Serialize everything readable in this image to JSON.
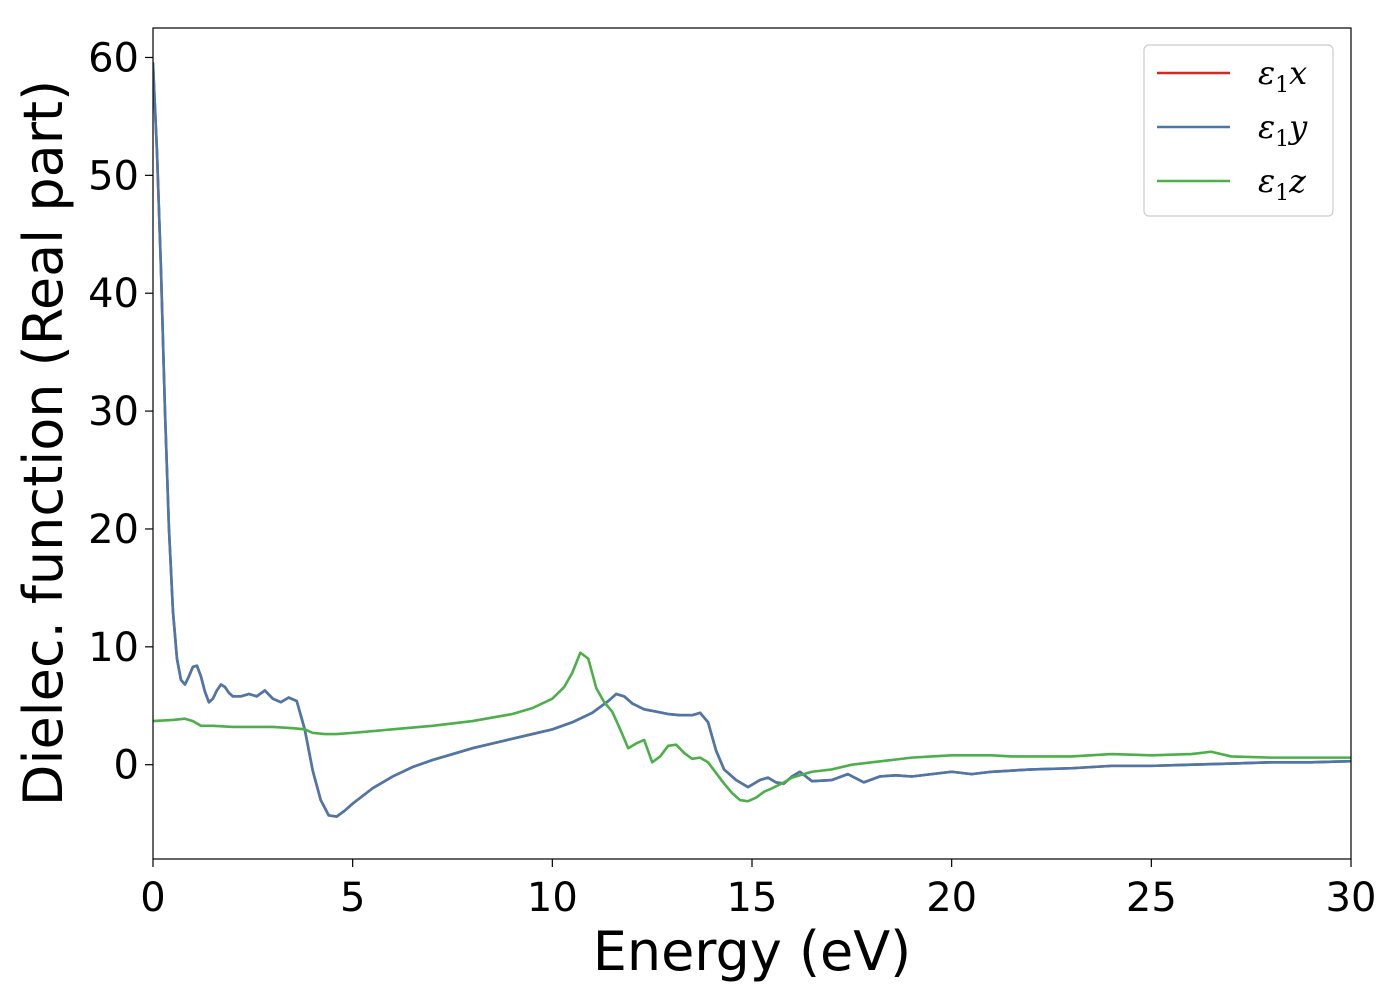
{
  "chart_data": {
    "type": "line",
    "title": "",
    "xlabel": "Energy (eV)",
    "ylabel": "Dielec. function (Real part)",
    "xlim": [
      0,
      30
    ],
    "ylim": [
      -8,
      62.5
    ],
    "xticks": [
      0,
      5,
      10,
      15,
      20,
      25,
      30
    ],
    "yticks": [
      0,
      10,
      20,
      30,
      40,
      50,
      60
    ],
    "grid": false,
    "legend_position": "top-right",
    "series": [
      {
        "name": "ε1x",
        "legend_base": "ε",
        "legend_sub": "1",
        "legend_var": "x",
        "color": "#d62728",
        "x": [
          0,
          0.1,
          0.2,
          0.3,
          0.4,
          0.5,
          0.6,
          0.7,
          0.8,
          0.9,
          1.0,
          1.1,
          1.2,
          1.3,
          1.4,
          1.5,
          1.6,
          1.7,
          1.8,
          1.9,
          2.0,
          2.2,
          2.4,
          2.6,
          2.8,
          3.0,
          3.2,
          3.4,
          3.6,
          3.8,
          4.0,
          4.2,
          4.4,
          4.6,
          4.8,
          5.0,
          5.5,
          6.0,
          6.5,
          7.0,
          7.5,
          8.0,
          8.5,
          9.0,
          9.5,
          10.0,
          10.5,
          11.0,
          11.4,
          11.6,
          11.8,
          12.0,
          12.3,
          12.6,
          12.9,
          13.2,
          13.5,
          13.7,
          13.9,
          14.1,
          14.3,
          14.6,
          14.9,
          15.2,
          15.4,
          15.6,
          15.8,
          16.0,
          16.2,
          16.5,
          17.0,
          17.4,
          17.8,
          18.2,
          18.6,
          19.0,
          19.5,
          20.0,
          20.5,
          21.0,
          22.0,
          23.0,
          24.0,
          25.0,
          26.0,
          27.0,
          28.0,
          29.0,
          30.0
        ],
        "y": [
          59.5,
          52,
          42,
          30,
          20,
          13,
          9,
          7.2,
          6.8,
          7.5,
          8.3,
          8.4,
          7.5,
          6.2,
          5.3,
          5.6,
          6.3,
          6.8,
          6.6,
          6.1,
          5.8,
          5.8,
          6.0,
          5.8,
          6.3,
          5.6,
          5.3,
          5.7,
          5.4,
          3.0,
          -0.5,
          -3.0,
          -4.3,
          -4.4,
          -3.9,
          -3.3,
          -2.0,
          -1.0,
          -0.2,
          0.4,
          0.9,
          1.4,
          1.8,
          2.2,
          2.6,
          3.0,
          3.6,
          4.4,
          5.4,
          6.0,
          5.8,
          5.2,
          4.7,
          4.5,
          4.3,
          4.2,
          4.2,
          4.4,
          3.6,
          1.2,
          -0.4,
          -1.3,
          -1.9,
          -1.3,
          -1.1,
          -1.5,
          -1.6,
          -1.0,
          -0.6,
          -1.4,
          -1.3,
          -0.8,
          -1.5,
          -1.0,
          -0.9,
          -1.0,
          -0.8,
          -0.6,
          -0.8,
          -0.6,
          -0.4,
          -0.3,
          -0.1,
          -0.1,
          0.0,
          0.1,
          0.2,
          0.2,
          0.3
        ]
      },
      {
        "name": "ε1y",
        "legend_base": "ε",
        "legend_sub": "1",
        "legend_var": "y",
        "color": "#4a78ab",
        "x": [
          0,
          0.1,
          0.2,
          0.3,
          0.4,
          0.5,
          0.6,
          0.7,
          0.8,
          0.9,
          1.0,
          1.1,
          1.2,
          1.3,
          1.4,
          1.5,
          1.6,
          1.7,
          1.8,
          1.9,
          2.0,
          2.2,
          2.4,
          2.6,
          2.8,
          3.0,
          3.2,
          3.4,
          3.6,
          3.8,
          4.0,
          4.2,
          4.4,
          4.6,
          4.8,
          5.0,
          5.5,
          6.0,
          6.5,
          7.0,
          7.5,
          8.0,
          8.5,
          9.0,
          9.5,
          10.0,
          10.5,
          11.0,
          11.4,
          11.6,
          11.8,
          12.0,
          12.3,
          12.6,
          12.9,
          13.2,
          13.5,
          13.7,
          13.9,
          14.1,
          14.3,
          14.6,
          14.9,
          15.2,
          15.4,
          15.6,
          15.8,
          16.0,
          16.2,
          16.5,
          17.0,
          17.4,
          17.8,
          18.2,
          18.6,
          19.0,
          19.5,
          20.0,
          20.5,
          21.0,
          22.0,
          23.0,
          24.0,
          25.0,
          26.0,
          27.0,
          28.0,
          29.0,
          30.0
        ],
        "y": [
          59.5,
          52,
          42,
          30,
          20,
          13,
          9,
          7.2,
          6.8,
          7.5,
          8.3,
          8.4,
          7.5,
          6.2,
          5.3,
          5.6,
          6.3,
          6.8,
          6.6,
          6.1,
          5.8,
          5.8,
          6.0,
          5.8,
          6.3,
          5.6,
          5.3,
          5.7,
          5.4,
          3.0,
          -0.5,
          -3.0,
          -4.3,
          -4.4,
          -3.9,
          -3.3,
          -2.0,
          -1.0,
          -0.2,
          0.4,
          0.9,
          1.4,
          1.8,
          2.2,
          2.6,
          3.0,
          3.6,
          4.4,
          5.4,
          6.0,
          5.8,
          5.2,
          4.7,
          4.5,
          4.3,
          4.2,
          4.2,
          4.4,
          3.6,
          1.2,
          -0.4,
          -1.3,
          -1.9,
          -1.3,
          -1.1,
          -1.5,
          -1.6,
          -1.0,
          -0.6,
          -1.4,
          -1.3,
          -0.8,
          -1.5,
          -1.0,
          -0.9,
          -1.0,
          -0.8,
          -0.6,
          -0.8,
          -0.6,
          -0.4,
          -0.3,
          -0.1,
          -0.1,
          0.0,
          0.1,
          0.2,
          0.2,
          0.3
        ]
      },
      {
        "name": "ε1z",
        "legend_base": "ε",
        "legend_sub": "1",
        "legend_var": "z",
        "color": "#4daf4a",
        "x": [
          0,
          0.5,
          0.8,
          1.0,
          1.2,
          1.5,
          2.0,
          2.5,
          3.0,
          3.5,
          3.8,
          4.0,
          4.3,
          4.6,
          5.0,
          6.0,
          7.0,
          8.0,
          9.0,
          9.5,
          10.0,
          10.3,
          10.5,
          10.7,
          10.9,
          11.1,
          11.3,
          11.5,
          11.7,
          11.9,
          12.1,
          12.3,
          12.5,
          12.7,
          12.9,
          13.1,
          13.3,
          13.5,
          13.7,
          13.9,
          14.1,
          14.3,
          14.5,
          14.7,
          14.9,
          15.1,
          15.3,
          15.5,
          15.8,
          16.0,
          16.5,
          17.0,
          17.5,
          18.0,
          18.5,
          19.0,
          19.5,
          20.0,
          20.5,
          21.0,
          21.5,
          22.0,
          23.0,
          24.0,
          25.0,
          26.0,
          26.5,
          27.0,
          28.0,
          29.0,
          30.0
        ],
        "y": [
          3.7,
          3.8,
          3.9,
          3.7,
          3.3,
          3.3,
          3.2,
          3.2,
          3.2,
          3.1,
          3.0,
          2.7,
          2.6,
          2.6,
          2.7,
          3.0,
          3.3,
          3.7,
          4.3,
          4.8,
          5.6,
          6.6,
          7.8,
          9.5,
          9.0,
          6.5,
          5.3,
          4.5,
          3.0,
          1.4,
          1.8,
          2.1,
          0.2,
          0.7,
          1.6,
          1.7,
          1.0,
          0.5,
          0.6,
          0.2,
          -0.7,
          -1.6,
          -2.4,
          -3.0,
          -3.1,
          -2.8,
          -2.3,
          -2.0,
          -1.5,
          -1.1,
          -0.6,
          -0.4,
          0.0,
          0.2,
          0.4,
          0.6,
          0.7,
          0.8,
          0.8,
          0.8,
          0.7,
          0.7,
          0.7,
          0.9,
          0.8,
          0.9,
          1.1,
          0.7,
          0.6,
          0.6,
          0.6
        ]
      }
    ]
  }
}
